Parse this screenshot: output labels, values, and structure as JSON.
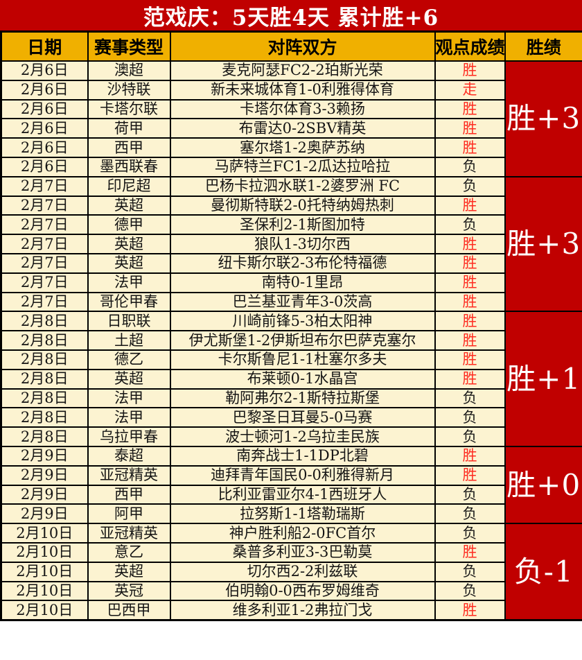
{
  "title": "范戏庆：5天胜4天 累计胜+6",
  "columns": [
    "日期",
    "赛事类型",
    "对阵双方",
    "观点成绩",
    "胜绩"
  ],
  "colors": {
    "banner_bg": "#c00000",
    "banner_text": "#ffffff",
    "header_bg": "#f0b000",
    "header_text": "#000000",
    "cell_bg": "#fcf3d1",
    "win_text": "#fe2b20",
    "loss_text": "#1a1a1a",
    "summary_bg": "#c00000",
    "summary_text": "#ffffff",
    "border": "#000000"
  },
  "groups": [
    {
      "summary": "胜+3",
      "rows": [
        {
          "date": "2月6日",
          "league": "澳超",
          "match": "麦克阿瑟FC2-2珀斯光荣",
          "result": "胜",
          "result_color": "red"
        },
        {
          "date": "2月6日",
          "league": "沙特联",
          "match": "新未来城体育1-0利雅得体育",
          "result": "走",
          "result_color": "red"
        },
        {
          "date": "2月6日",
          "league": "卡塔尔联",
          "match": "卡塔尔体育3-3赖扬",
          "result": "胜",
          "result_color": "red"
        },
        {
          "date": "2月6日",
          "league": "荷甲",
          "match": "布雷达0-2SBV精英",
          "result": "胜",
          "result_color": "red"
        },
        {
          "date": "2月6日",
          "league": "西甲",
          "match": "塞尔塔1-2奥萨苏纳",
          "result": "胜",
          "result_color": "red"
        },
        {
          "date": "2月6日",
          "league": "墨西联春",
          "match": "马萨特兰FC1-2瓜达拉哈拉",
          "result": "负",
          "result_color": "black"
        }
      ]
    },
    {
      "summary": "胜+3",
      "rows": [
        {
          "date": "2月7日",
          "league": "印尼超",
          "match": "巴杨卡拉泗水联1-2婆罗洲 FC",
          "result": "负",
          "result_color": "black"
        },
        {
          "date": "2月7日",
          "league": "英超",
          "match": "曼彻斯特联2-0托特纳姆热刺",
          "result": "胜",
          "result_color": "red"
        },
        {
          "date": "2月7日",
          "league": "德甲",
          "match": "圣保利2-1斯图加特",
          "result": "负",
          "result_color": "black"
        },
        {
          "date": "2月7日",
          "league": "英超",
          "match": "狼队1-3切尔西",
          "result": "胜",
          "result_color": "red"
        },
        {
          "date": "2月7日",
          "league": "英超",
          "match": "纽卡斯尔联2-3布伦特福德",
          "result": "胜",
          "result_color": "red"
        },
        {
          "date": "2月7日",
          "league": "法甲",
          "match": "南特0-1里昂",
          "result": "胜",
          "result_color": "red"
        },
        {
          "date": "2月7日",
          "league": "哥伦甲春",
          "match": "巴兰基亚青年3-0茨高",
          "result": "胜",
          "result_color": "red"
        }
      ]
    },
    {
      "summary": "胜+1",
      "rows": [
        {
          "date": "2月8日",
          "league": "日职联",
          "match": "川崎前锋5-3柏太阳神",
          "result": "胜",
          "result_color": "red"
        },
        {
          "date": "2月8日",
          "league": "土超",
          "match": "伊尤斯堡1-2伊斯坦布尔巴萨克塞尔",
          "result": "胜",
          "result_color": "red"
        },
        {
          "date": "2月8日",
          "league": "德乙",
          "match": "卡尔斯鲁尼1-1杜塞尔多夫",
          "result": "胜",
          "result_color": "red"
        },
        {
          "date": "2月8日",
          "league": "英超",
          "match": "布莱顿0-1水晶宫",
          "result": "胜",
          "result_color": "red"
        },
        {
          "date": "2月8日",
          "league": "法甲",
          "match": "勒阿弗尔2-1斯特拉斯堡",
          "result": "负",
          "result_color": "black"
        },
        {
          "date": "2月8日",
          "league": "法甲",
          "match": "巴黎圣日耳曼5-0马赛",
          "result": "负",
          "result_color": "black"
        },
        {
          "date": "2月8日",
          "league": "乌拉甲春",
          "match": "波士顿河1-2乌拉圭民族",
          "result": "负",
          "result_color": "black"
        }
      ]
    },
    {
      "summary": "胜+0",
      "rows": [
        {
          "date": "2月9日",
          "league": "泰超",
          "match": "南奔战士1-1DP北碧",
          "result": "胜",
          "result_color": "red"
        },
        {
          "date": "2月9日",
          "league": "亚冠精英",
          "match": "迪拜青年国民0-0利雅得新月",
          "result": "胜",
          "result_color": "red"
        },
        {
          "date": "2月9日",
          "league": "西甲",
          "match": "比利亚雷亚尔4-1西班牙人",
          "result": "负",
          "result_color": "black"
        },
        {
          "date": "2月9日",
          "league": "阿甲",
          "match": "拉努斯1-1塔勒瑞斯",
          "result": "负",
          "result_color": "black"
        }
      ]
    },
    {
      "summary": "负-1",
      "rows": [
        {
          "date": "2月10日",
          "league": "亚冠精英",
          "match": "神户胜利船2-0FC首尔",
          "result": "负",
          "result_color": "black"
        },
        {
          "date": "2月10日",
          "league": "意乙",
          "match": "桑普多利亚3-3巴勒莫",
          "result": "胜",
          "result_color": "red"
        },
        {
          "date": "2月10日",
          "league": "英超",
          "match": "切尔西2-2利兹联",
          "result": "负",
          "result_color": "black"
        },
        {
          "date": "2月10日",
          "league": "英冠",
          "match": "伯明翰0-0西布罗姆维奇",
          "result": "负",
          "result_color": "black"
        },
        {
          "date": "2月10日",
          "league": "巴西甲",
          "match": "维多利亚1-2弗拉门戈",
          "result": "胜",
          "result_color": "red"
        }
      ]
    }
  ]
}
